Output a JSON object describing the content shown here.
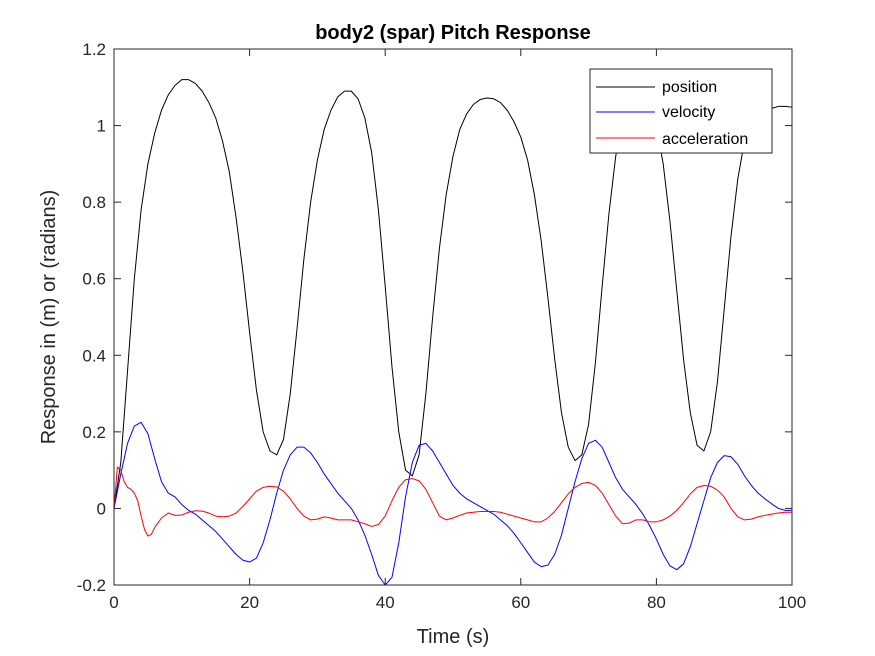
{
  "chart_data": {
    "type": "line",
    "title": "body2 (spar) Pitch Response",
    "xlabel": "Time (s)",
    "ylabel": "Response in (m) or (radians)",
    "xlim": [
      0,
      100
    ],
    "ylim": [
      -0.2,
      1.2
    ],
    "x_ticks": [
      0,
      20,
      40,
      60,
      80,
      100
    ],
    "y_ticks": [
      -0.2,
      0,
      0.2,
      0.4,
      0.6,
      0.8,
      1,
      1.2
    ],
    "x_tick_labels": [
      "0",
      "20",
      "40",
      "60",
      "80",
      "100"
    ],
    "y_tick_labels": [
      "-0.2",
      "0",
      "0.2",
      "0.4",
      "0.6",
      "0.8",
      "1",
      "1.2"
    ],
    "grid": false,
    "legend_position": "top-right",
    "series": [
      {
        "name": "position",
        "color": "#000000",
        "x": [
          0,
          1,
          2,
          3,
          4,
          5,
          6,
          7,
          8,
          9,
          10,
          11,
          12,
          13,
          14,
          15,
          16,
          17,
          18,
          19,
          20,
          21,
          22,
          23,
          24,
          25,
          26,
          27,
          28,
          29,
          30,
          31,
          32,
          33,
          34,
          35,
          36,
          37,
          38,
          39,
          40,
          41,
          42,
          43,
          44,
          45,
          46,
          47,
          48,
          49,
          50,
          51,
          52,
          53,
          54,
          55,
          56,
          57,
          58,
          59,
          60,
          61,
          62,
          63,
          64,
          65,
          66,
          67,
          68,
          69,
          70,
          71,
          72,
          73,
          74,
          75,
          76,
          77,
          78,
          79,
          80,
          81,
          82,
          83,
          84,
          85,
          86,
          87,
          88,
          89,
          90,
          91,
          92,
          93,
          94,
          95,
          96,
          97,
          98,
          99,
          100
        ],
        "y": [
          0,
          0.12,
          0.36,
          0.6,
          0.78,
          0.9,
          0.98,
          1.04,
          1.08,
          1.105,
          1.12,
          1.12,
          1.11,
          1.09,
          1.06,
          1.02,
          0.96,
          0.88,
          0.76,
          0.62,
          0.46,
          0.31,
          0.2,
          0.15,
          0.14,
          0.18,
          0.3,
          0.47,
          0.65,
          0.8,
          0.91,
          0.99,
          1.04,
          1.075,
          1.09,
          1.09,
          1.07,
          1.02,
          0.93,
          0.78,
          0.58,
          0.37,
          0.2,
          0.1,
          0.085,
          0.14,
          0.3,
          0.5,
          0.68,
          0.82,
          0.92,
          0.99,
          1.03,
          1.055,
          1.068,
          1.072,
          1.07,
          1.06,
          1.04,
          1.01,
          0.97,
          0.91,
          0.82,
          0.7,
          0.55,
          0.39,
          0.25,
          0.16,
          0.125,
          0.14,
          0.22,
          0.38,
          0.58,
          0.77,
          0.92,
          1.02,
          1.07,
          1.09,
          1.085,
          1.06,
          1.0,
          0.9,
          0.75,
          0.57,
          0.39,
          0.25,
          0.165,
          0.15,
          0.2,
          0.33,
          0.52,
          0.71,
          0.86,
          0.96,
          1.0,
          1.02,
          1.035,
          1.045,
          1.05,
          1.05,
          1.048
        ]
      },
      {
        "name": "velocity",
        "color": "#0000ff",
        "x": [
          0,
          1,
          2,
          3,
          4,
          5,
          6,
          7,
          8,
          9,
          10,
          11,
          12,
          13,
          14,
          15,
          16,
          17,
          18,
          19,
          20,
          21,
          22,
          23,
          24,
          25,
          26,
          27,
          28,
          29,
          30,
          31,
          32,
          33,
          34,
          35,
          36,
          37,
          38,
          39,
          40,
          41,
          42,
          43,
          44,
          45,
          46,
          47,
          48,
          49,
          50,
          51,
          52,
          53,
          54,
          55,
          56,
          57,
          58,
          59,
          60,
          61,
          62,
          63,
          64,
          65,
          66,
          67,
          68,
          69,
          70,
          71,
          72,
          73,
          74,
          75,
          76,
          77,
          78,
          79,
          80,
          81,
          82,
          83,
          84,
          85,
          86,
          87,
          88,
          89,
          90,
          91,
          92,
          93,
          94,
          95,
          96,
          97,
          98,
          99,
          100
        ],
        "y": [
          0,
          0.09,
          0.17,
          0.215,
          0.225,
          0.195,
          0.13,
          0.07,
          0.04,
          0.03,
          0.01,
          -0.005,
          -0.015,
          -0.03,
          -0.045,
          -0.06,
          -0.08,
          -0.1,
          -0.12,
          -0.135,
          -0.14,
          -0.13,
          -0.09,
          -0.03,
          0.04,
          0.1,
          0.14,
          0.16,
          0.16,
          0.145,
          0.12,
          0.09,
          0.065,
          0.04,
          0.02,
          0.0,
          -0.03,
          -0.07,
          -0.12,
          -0.175,
          -0.2,
          -0.18,
          -0.09,
          0.03,
          0.12,
          0.165,
          0.17,
          0.15,
          0.12,
          0.09,
          0.06,
          0.04,
          0.025,
          0.015,
          0.005,
          -0.005,
          -0.015,
          -0.03,
          -0.045,
          -0.065,
          -0.09,
          -0.115,
          -0.14,
          -0.152,
          -0.148,
          -0.12,
          -0.07,
          0.0,
          0.07,
          0.13,
          0.17,
          0.178,
          0.16,
          0.12,
          0.08,
          0.05,
          0.03,
          0.01,
          -0.015,
          -0.045,
          -0.08,
          -0.12,
          -0.15,
          -0.16,
          -0.145,
          -0.1,
          -0.04,
          0.02,
          0.08,
          0.12,
          0.138,
          0.135,
          0.115,
          0.085,
          0.06,
          0.04,
          0.025,
          0.012,
          0.0,
          -0.005,
          -0.005
        ]
      },
      {
        "name": "acceleration",
        "color": "#ff0000",
        "x": [
          0,
          0.5,
          1,
          1.5,
          2,
          2.5,
          3,
          3.5,
          4,
          4.5,
          5,
          5.5,
          6,
          7,
          8,
          9,
          10,
          11,
          12,
          13,
          14,
          15,
          16,
          17,
          18,
          19,
          20,
          21,
          22,
          23,
          24,
          25,
          26,
          27,
          28,
          29,
          30,
          31,
          32,
          33,
          34,
          35,
          36,
          37,
          38,
          39,
          40,
          41,
          42,
          43,
          44,
          45,
          46,
          47,
          48,
          49,
          50,
          51,
          52,
          53,
          54,
          55,
          56,
          57,
          58,
          59,
          60,
          61,
          62,
          63,
          64,
          65,
          66,
          67,
          68,
          69,
          70,
          71,
          72,
          73,
          74,
          75,
          76,
          77,
          78,
          79,
          80,
          81,
          82,
          83,
          84,
          85,
          86,
          87,
          88,
          89,
          90,
          91,
          92,
          93,
          94,
          95,
          96,
          97,
          98,
          99,
          100
        ],
        "y": [
          0.0,
          0.108,
          0.1,
          0.07,
          0.055,
          0.05,
          0.04,
          0.02,
          -0.02,
          -0.055,
          -0.072,
          -0.068,
          -0.05,
          -0.025,
          -0.012,
          -0.018,
          -0.017,
          -0.01,
          -0.006,
          -0.007,
          -0.012,
          -0.02,
          -0.022,
          -0.02,
          -0.012,
          0.005,
          0.025,
          0.045,
          0.055,
          0.058,
          0.056,
          0.045,
          0.025,
          0.0,
          -0.02,
          -0.03,
          -0.028,
          -0.022,
          -0.025,
          -0.03,
          -0.03,
          -0.03,
          -0.035,
          -0.04,
          -0.047,
          -0.042,
          -0.02,
          0.02,
          0.055,
          0.075,
          0.078,
          0.072,
          0.05,
          0.015,
          -0.02,
          -0.03,
          -0.025,
          -0.018,
          -0.012,
          -0.01,
          -0.008,
          -0.008,
          -0.008,
          -0.01,
          -0.015,
          -0.02,
          -0.025,
          -0.03,
          -0.035,
          -0.035,
          -0.025,
          -0.008,
          0.015,
          0.038,
          0.055,
          0.065,
          0.068,
          0.06,
          0.04,
          0.01,
          -0.02,
          -0.04,
          -0.038,
          -0.03,
          -0.03,
          -0.035,
          -0.035,
          -0.03,
          -0.02,
          -0.005,
          0.015,
          0.038,
          0.055,
          0.06,
          0.058,
          0.048,
          0.03,
          0.0,
          -0.022,
          -0.03,
          -0.028,
          -0.022,
          -0.018,
          -0.015,
          -0.012,
          -0.01,
          -0.01
        ]
      }
    ]
  }
}
